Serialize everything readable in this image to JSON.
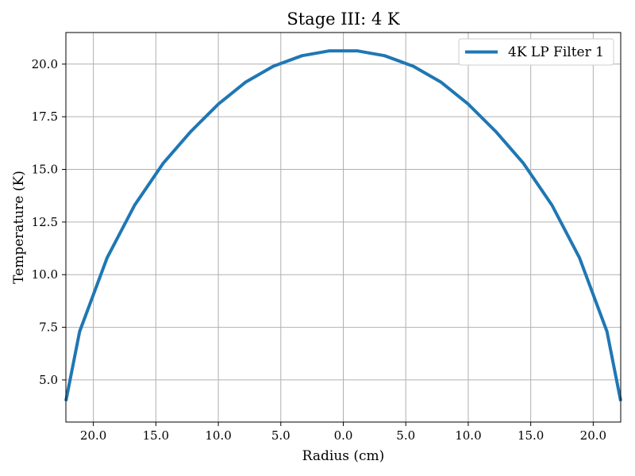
{
  "chart_data": {
    "type": "line",
    "title": "Stage III: 4 K",
    "xlabel": "Radius (cm)",
    "ylabel": "Temperature (K)",
    "xlim": [
      -22.2,
      22.2
    ],
    "ylim": [
      3.0,
      21.5
    ],
    "x_ticks": [
      {
        "value": -20,
        "label": "20.0"
      },
      {
        "value": -15,
        "label": "15.0"
      },
      {
        "value": -10,
        "label": "10.0"
      },
      {
        "value": -5,
        "label": "5.0"
      },
      {
        "value": 0,
        "label": "0.0"
      },
      {
        "value": 5,
        "label": "5.0"
      },
      {
        "value": 10,
        "label": "10.0"
      },
      {
        "value": 15,
        "label": "15.0"
      },
      {
        "value": 20,
        "label": "20.0"
      }
    ],
    "y_ticks": [
      {
        "value": 5.0,
        "label": "5.0"
      },
      {
        "value": 7.5,
        "label": "7.5"
      },
      {
        "value": 10.0,
        "label": "10.0"
      },
      {
        "value": 12.5,
        "label": "12.5"
      },
      {
        "value": 15.0,
        "label": "15.0"
      },
      {
        "value": 17.5,
        "label": "17.5"
      },
      {
        "value": 20.0,
        "label": "20.0"
      }
    ],
    "grid": true,
    "legend_position": "top-right",
    "series": [
      {
        "name": "4K LP Filter 1",
        "color": "#1f77b4",
        "x": [
          -22.2,
          -21.1,
          -18.9,
          -16.7,
          -14.4,
          -12.2,
          -10.0,
          -7.8,
          -5.6,
          -3.3,
          -1.1,
          1.1,
          3.3,
          5.6,
          7.8,
          10.0,
          12.2,
          14.4,
          16.7,
          18.9,
          21.1,
          22.2
        ],
        "y": [
          4.0,
          7.3,
          10.8,
          13.3,
          15.3,
          16.8,
          18.1,
          19.15,
          19.9,
          20.4,
          20.63,
          20.63,
          20.4,
          19.9,
          19.15,
          18.1,
          16.8,
          15.3,
          13.3,
          10.8,
          7.3,
          4.0
        ]
      }
    ]
  }
}
